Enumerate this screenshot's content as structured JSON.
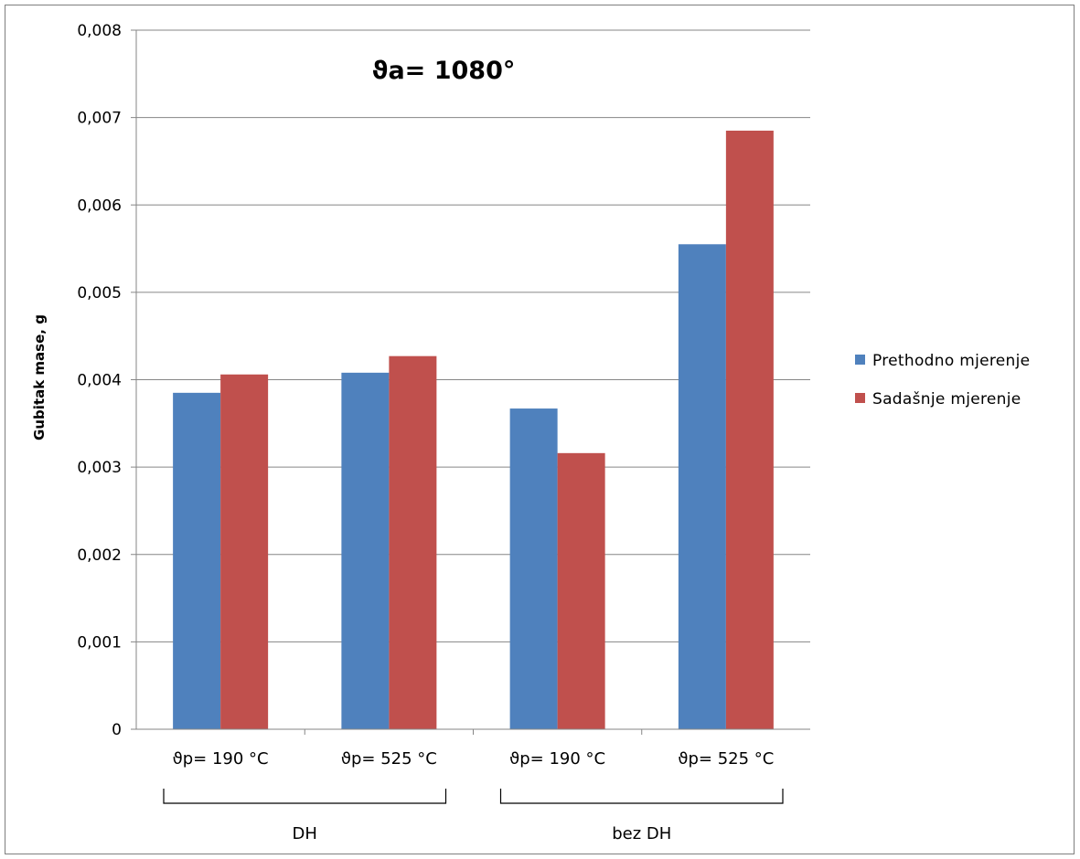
{
  "chart_data": {
    "type": "bar",
    "title": "ϑa= 1080°",
    "ylabel": "Gubitak mase, g",
    "xlabel": "",
    "ylim": [
      0,
      0.008
    ],
    "yticks": [
      0,
      0.001,
      0.002,
      0.003,
      0.004,
      0.005,
      0.006,
      0.007,
      0.008
    ],
    "ytick_labels": [
      "0",
      "0,001",
      "0,002",
      "0,003",
      "0,004",
      "0,005",
      "0,006",
      "0,007",
      "0,008"
    ],
    "categories": [
      "ϑp= 190 °C",
      "ϑp= 525 °C",
      "ϑp= 190 °C",
      "ϑp= 525 °C"
    ],
    "groups": [
      {
        "label": "DH",
        "categories": [
          0,
          1
        ]
      },
      {
        "label": "bez DH",
        "categories": [
          2,
          3
        ]
      }
    ],
    "series": [
      {
        "name": "Prethodno mjerenje",
        "color": "#4F81BD",
        "values": [
          0.00385,
          0.00408,
          0.00367,
          0.00555
        ]
      },
      {
        "name": "Sadašnje mjerenje",
        "color": "#C0504D",
        "values": [
          0.00406,
          0.00427,
          0.00316,
          0.00685
        ]
      }
    ],
    "grid": true,
    "legend_position": "right"
  }
}
